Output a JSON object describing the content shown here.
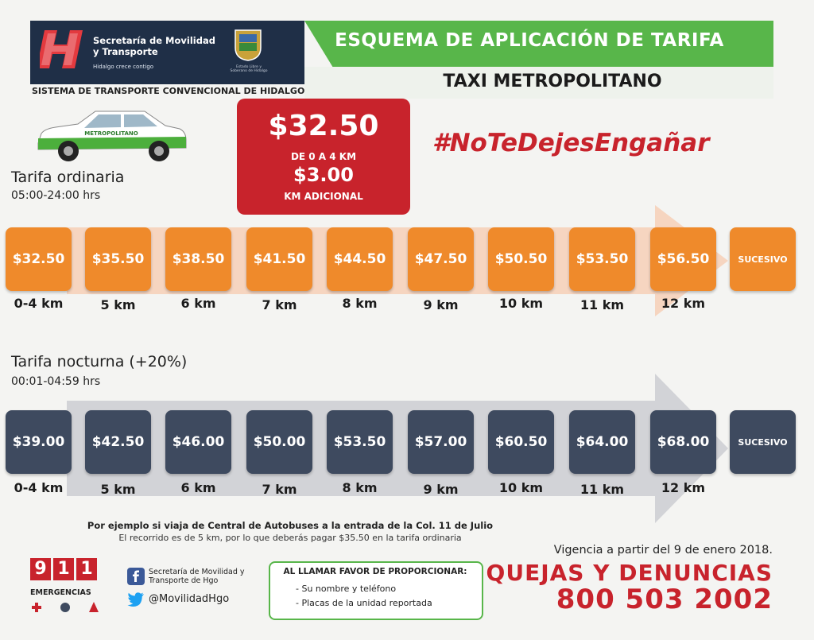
{
  "header": {
    "org_name": "Secretaría de Movilidad y Transporte",
    "org_tagline": "Hidalgo crece contigo",
    "seal_caption": "Estado Libre y Soberano de Hidalgo",
    "title": "ESQUEMA DE APLICACIÓN DE TARIFA",
    "subtitle": "TAXI METROPOLITANO",
    "system": "SISTEMA DE TRANSPORTE CONVENCIONAL DE HIDALGO"
  },
  "price_box": {
    "base": "$32.50",
    "base_range": "DE 0 A 4 KM",
    "additional": "$3.00",
    "additional_label": "KM ADICIONAL"
  },
  "hashtag": "#NoTeDejesEngañar",
  "ordinary": {
    "title": "Tarifa ordinaria",
    "hours": "05:00-24:00 hrs",
    "fares": [
      "$32.50",
      "$35.50",
      "$38.50",
      "$41.50",
      "$44.50",
      "$47.50",
      "$50.50",
      "$53.50",
      "$56.50",
      "SUCESIVO"
    ],
    "distances": [
      "0-4 km",
      "5 km",
      "6 km",
      "7 km",
      "8 km",
      "9 km",
      "10 km",
      "11 km",
      "12 km"
    ]
  },
  "night": {
    "title": "Tarifa nocturna (+20%)",
    "hours": "00:01-04:59 hrs",
    "fares": [
      "$39.00",
      "$42.50",
      "$46.00",
      "$50.00",
      "$53.50",
      "$57.00",
      "$60.50",
      "$64.00",
      "$68.00",
      "SUCESIVO"
    ],
    "distances": [
      "0-4 km",
      "5 km",
      "6 km",
      "7 km",
      "8 km",
      "9 km",
      "10 km",
      "11 km",
      "12 km"
    ]
  },
  "footer": {
    "example_line1": "Por ejemplo si viaja de Central de Autobuses a la entrada de la Col. 11 de Julio",
    "example_line2": "El recorrido es de 5 km, por lo que deberás pagar $35.50 en la tarifa ordinaria",
    "emergency_digits": [
      "9",
      "1",
      "1"
    ],
    "emergency_label": "EMERGENCIAS",
    "facebook": "Secretaría de Movilidad y Transporte de Hgo",
    "twitter": "@MovilidadHgo",
    "call_title": "AL LLAMAR FAVOR DE PROPORCIONAR:",
    "call_items": [
      "- Su nombre y teléfono",
      "- Placas de la unidad reportada"
    ],
    "validity": "Vigencia a partir del 9 de enero 2018.",
    "complaints": "QUEJAS Y DENUNCIAS",
    "phone": "800 503 2002"
  },
  "colors": {
    "orange": "#ef8a2b",
    "dark": "#3e4a5f",
    "red": "#c8232c",
    "green": "#58b64a",
    "navy": "#1f2f47"
  }
}
